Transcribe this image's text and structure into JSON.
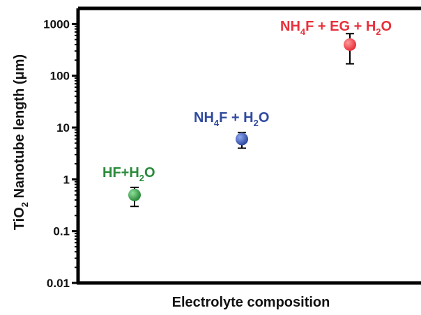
{
  "chart_data": {
    "type": "scatter",
    "scale": "log",
    "ylim": [
      0.01,
      2000
    ],
    "yticks": [
      "0.01",
      "0.1",
      "1",
      "10",
      "100",
      "1000"
    ],
    "xlabel": "Electrolyte composition",
    "ylabel": {
      "main": "TiO",
      "sub": "2",
      "rest": " Nanotube length (μm)"
    },
    "points": [
      {
        "label": {
          "parts": [
            [
              "HF+H",
              ""
            ],
            [
              "2",
              "sub"
            ],
            [
              "O",
              ""
            ]
          ]
        },
        "y": 0.5,
        "err_low": 0.3,
        "err_high": 0.7,
        "color": "#2a8a3a"
      },
      {
        "label": {
          "parts": [
            [
              "NH",
              ""
            ],
            [
              "4",
              "sub"
            ],
            [
              "F + H",
              ""
            ],
            [
              "2",
              "sub"
            ],
            [
              "O",
              ""
            ]
          ]
        },
        "y": 6,
        "err_low": 4,
        "err_high": 8,
        "color": "#2f4aa0"
      },
      {
        "label": {
          "parts": [
            [
              "NH",
              ""
            ],
            [
              "4",
              "sub"
            ],
            [
              "F + EG + H",
              ""
            ],
            [
              "2",
              "sub"
            ],
            [
              "O",
              ""
            ]
          ]
        },
        "y": 400,
        "err_low": 170,
        "err_high": 650,
        "color": "#e8303a"
      }
    ]
  }
}
